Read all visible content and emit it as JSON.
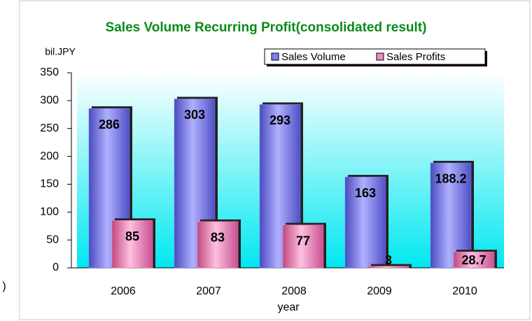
{
  "chart_data": {
    "type": "bar",
    "title": "Sales Volume Recurring Profit(consolidated result)",
    "y_label": "bil.JPY",
    "x_label": "year",
    "annotation": ")",
    "categories": [
      "2006",
      "2007",
      "2008",
      "2009",
      "2010"
    ],
    "series": [
      {
        "name": "Sales Volume",
        "color": "#8080f0",
        "values": [
          286,
          303,
          293,
          163,
          188.2
        ]
      },
      {
        "name": "Sales Profits",
        "color": "#f08cc0",
        "values": [
          85,
          83,
          77,
          3,
          28.7
        ]
      }
    ],
    "ylim": [
      0,
      350
    ],
    "yticks": [
      0,
      50,
      100,
      150,
      200,
      250,
      300,
      350
    ],
    "legend": "top-right"
  }
}
